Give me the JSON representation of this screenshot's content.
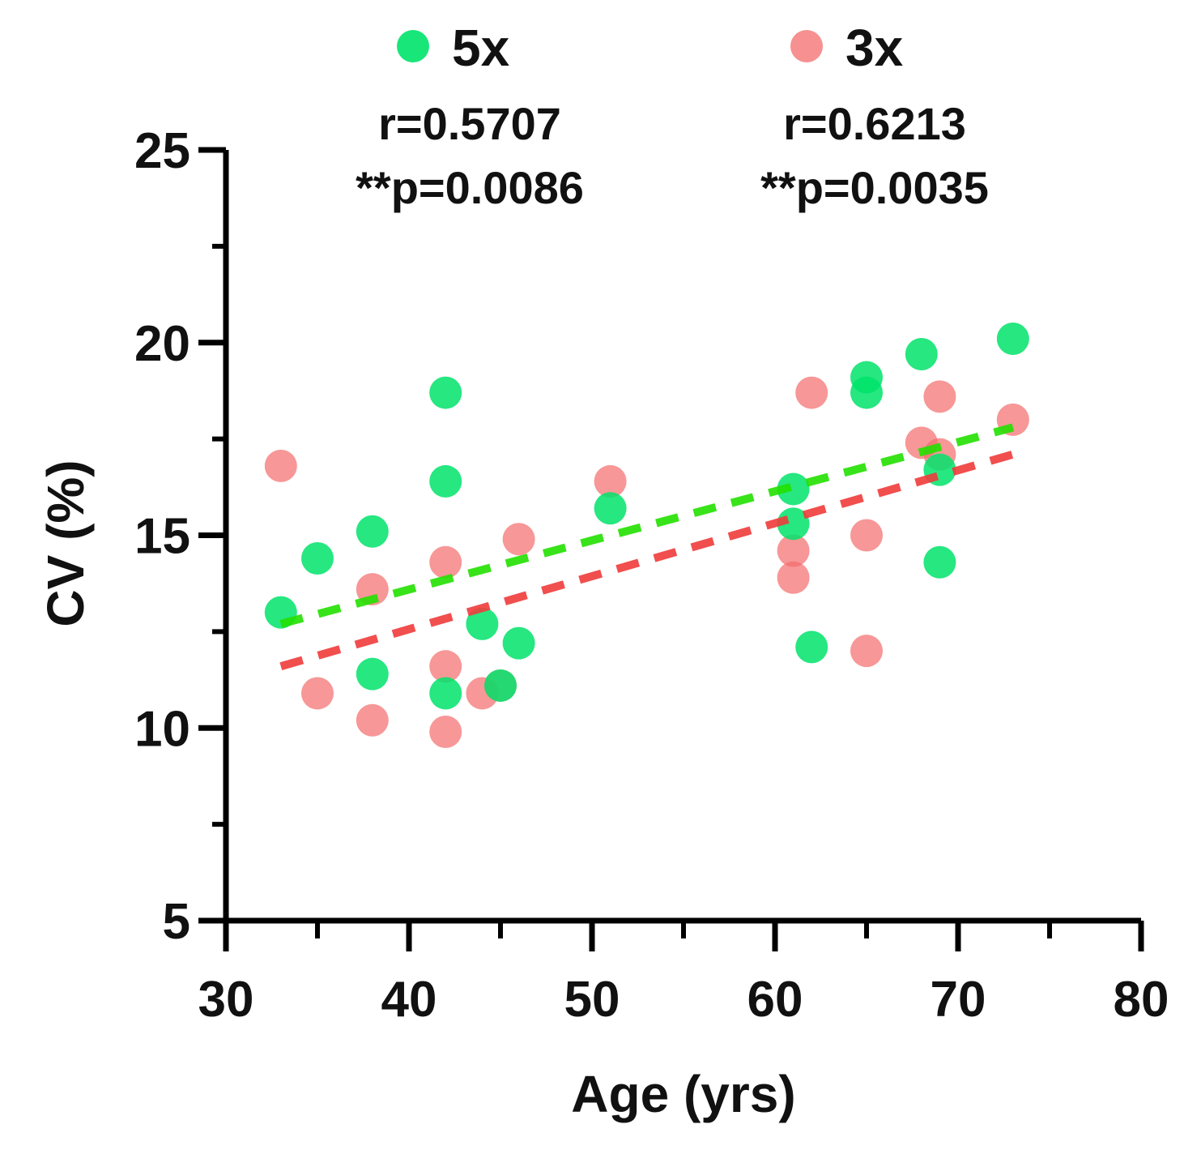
{
  "chart_data": {
    "type": "scatter",
    "xlabel": "Age (yrs)",
    "ylabel": "CV (%)",
    "xlim": [
      30,
      80
    ],
    "ylim": [
      5,
      25
    ],
    "x_ticks": [
      30,
      40,
      50,
      60,
      70,
      80
    ],
    "x_tick_labels": [
      "30",
      "40",
      "50",
      "60",
      "70",
      "80"
    ],
    "y_ticks": [
      5,
      10,
      15,
      20,
      25
    ],
    "y_tick_labels": [
      "5",
      "10",
      "15",
      "20",
      "25"
    ],
    "grid": false,
    "legend_position": "top",
    "series": [
      {
        "name": "5x",
        "color": "#00e36a",
        "points": [
          [
            33,
            13.0
          ],
          [
            35,
            14.4
          ],
          [
            38,
            15.1
          ],
          [
            38,
            11.4
          ],
          [
            42,
            18.7
          ],
          [
            42,
            16.4
          ],
          [
            42,
            10.9
          ],
          [
            44,
            12.7
          ],
          [
            45,
            11.1
          ],
          [
            46,
            12.2
          ],
          [
            51,
            15.7
          ],
          [
            61,
            16.2
          ],
          [
            61,
            15.3
          ],
          [
            62,
            12.1
          ],
          [
            65,
            19.1
          ],
          [
            65,
            18.7
          ],
          [
            68,
            19.7
          ],
          [
            69,
            16.7
          ],
          [
            69,
            14.3
          ],
          [
            73,
            20.1
          ]
        ],
        "fit": {
          "x": [
            33,
            73
          ],
          "y": [
            12.7,
            17.8
          ]
        },
        "annotation": [
          "r=0.5707",
          "**p=0.0086"
        ]
      },
      {
        "name": "3x",
        "color": "#f46b6b",
        "points": [
          [
            33,
            16.8
          ],
          [
            35,
            10.9
          ],
          [
            38,
            13.6
          ],
          [
            38,
            10.2
          ],
          [
            42,
            14.3
          ],
          [
            42,
            11.6
          ],
          [
            42,
            9.9
          ],
          [
            44,
            10.9
          ],
          [
            45,
            11.1
          ],
          [
            46,
            14.9
          ],
          [
            51,
            16.4
          ],
          [
            61,
            14.6
          ],
          [
            61,
            13.9
          ],
          [
            62,
            18.7
          ],
          [
            65,
            15.0
          ],
          [
            65,
            12.0
          ],
          [
            68,
            17.4
          ],
          [
            69,
            18.6
          ],
          [
            69,
            17.1
          ],
          [
            73,
            18.0
          ]
        ],
        "fit": {
          "x": [
            33,
            73
          ],
          "y": [
            11.6,
            17.1
          ]
        },
        "annotation": [
          "r=0.6213",
          "**p=0.0035"
        ]
      }
    ]
  }
}
